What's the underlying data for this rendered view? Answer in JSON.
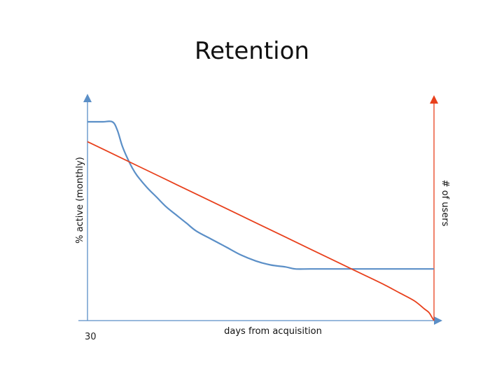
{
  "chart_data": {
    "type": "line",
    "title": "Retention",
    "xlabel": "days from acquisition",
    "ylabel": "% active (monthly)",
    "y2label": "# of users",
    "x_tick_labels": [
      "30"
    ],
    "x_ticks": [
      30
    ],
    "xlim": [
      30,
      100
    ],
    "ylim": [
      0,
      100
    ],
    "y2lim": [
      0,
      100
    ],
    "grid": false,
    "legend": "none",
    "series": [
      {
        "axis": "left",
        "color": "#5b8fc7",
        "x": [
          30,
          33,
          35,
          36,
          37,
          38,
          39,
          40,
          42,
          44,
          46,
          48,
          50,
          52,
          55,
          58,
          61,
          64,
          67,
          70,
          72,
          75,
          80,
          85,
          90,
          95,
          100
        ],
        "y": [
          100,
          100,
          100,
          96,
          88,
          82,
          77,
          73,
          67,
          62,
          57,
          53,
          49,
          45,
          41,
          37,
          33,
          30,
          28,
          27,
          26,
          26,
          26,
          26,
          26,
          26,
          26
        ]
      },
      {
        "axis": "right",
        "color": "#e8401c",
        "x": [
          30,
          35,
          40,
          45,
          50,
          55,
          60,
          65,
          70,
          75,
          80,
          85,
          90,
          93,
          96,
          98,
          99,
          99.5,
          100
        ],
        "y": [
          90,
          84,
          78,
          72,
          66,
          60,
          54,
          48,
          42,
          36,
          30,
          24,
          18,
          14,
          10,
          6,
          4,
          2,
          0
        ]
      }
    ],
    "colors": {
      "left_axis": "#5b8fc7",
      "right_axis": "#e8401c"
    }
  }
}
